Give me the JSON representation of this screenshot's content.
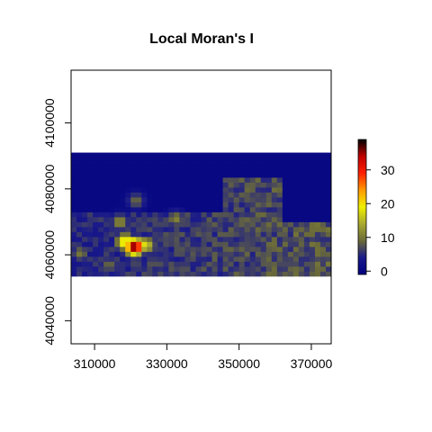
{
  "chart_data": {
    "type": "heatmap",
    "title": "Local Moran's I",
    "xlabel": "",
    "ylabel": "",
    "xlim": [
      303500,
      375500
    ],
    "ylim": [
      4033000,
      4116000
    ],
    "raster_extent": {
      "x": [
        303500,
        375500
      ],
      "y": [
        4053500,
        4091500
      ]
    },
    "x_ticks": [
      310000,
      330000,
      350000,
      370000
    ],
    "x_tick_labels": [
      "310000",
      "330000",
      "350000",
      "370000"
    ],
    "y_ticks": [
      4040000,
      4060000,
      4080000,
      4100000
    ],
    "y_tick_labels": [
      "4040000",
      "4060000",
      "4080000",
      "4100000"
    ],
    "legend": {
      "placement": "right",
      "min": -1,
      "max": 39,
      "ticks": [
        0,
        10,
        20,
        30
      ],
      "tick_labels": [
        "0",
        "10",
        "20",
        "30"
      ],
      "colors": [
        "#000080",
        "#1a1a8a",
        "#6b6b3a",
        "#a8a830",
        "#f0f000",
        "#ff9a00",
        "#ff2000",
        "#c00000",
        "#000000"
      ]
    },
    "hotspots": [
      {
        "x": 321000,
        "y": 4062500,
        "value": 38
      },
      {
        "x": 318500,
        "y": 4064000,
        "value": 22
      },
      {
        "x": 324000,
        "y": 4063000,
        "value": 18
      },
      {
        "x": 317000,
        "y": 4070000,
        "value": 12
      },
      {
        "x": 306000,
        "y": 4060500,
        "value": 10
      },
      {
        "x": 332500,
        "y": 4071000,
        "value": 11
      },
      {
        "x": 321500,
        "y": 4076500,
        "value": 9
      },
      {
        "x": 326000,
        "y": 4057500,
        "value": 8
      },
      {
        "x": 314000,
        "y": 4057000,
        "value": 9
      }
    ],
    "background_level": 7,
    "low_regions": [
      {
        "x": [
          303500,
          375500
        ],
        "y": [
          4083000,
          4091500
        ]
      },
      {
        "x": [
          303500,
          345000
        ],
        "y": [
          4073000,
          4091500
        ]
      },
      {
        "x": [
          362000,
          375500
        ],
        "y": [
          4070000,
          4091500
        ]
      }
    ]
  }
}
